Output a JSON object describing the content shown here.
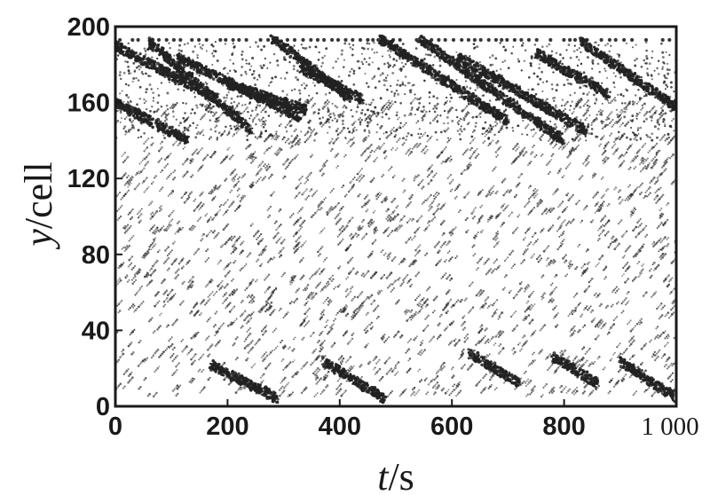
{
  "chart_data": {
    "type": "scatter",
    "title": "",
    "xlabel": {
      "var": "t",
      "unit": "/s"
    },
    "ylabel": {
      "var": "y",
      "unit": "/cell"
    },
    "xlim": [
      0,
      1000
    ],
    "ylim": [
      0,
      200
    ],
    "x_ticks": [
      {
        "value": 0,
        "label": "0"
      },
      {
        "value": 200,
        "label": "200"
      },
      {
        "value": 400,
        "label": "400"
      },
      {
        "value": 600,
        "label": "600"
      },
      {
        "value": 800,
        "label": "800"
      },
      {
        "value": 1000,
        "label": "1 000"
      }
    ],
    "y_ticks": [
      {
        "value": 0,
        "label": "0"
      },
      {
        "value": 40,
        "label": "40"
      },
      {
        "value": 80,
        "label": "80"
      },
      {
        "value": 120,
        "label": "120"
      },
      {
        "value": 160,
        "label": "160"
      },
      {
        "value": 200,
        "label": "200"
      }
    ],
    "grid": false,
    "legend": "none",
    "point_color": "#222222",
    "dense_bands": [
      {
        "t_start": 0,
        "t_end": 130,
        "y_start": 160,
        "y_end": 140
      },
      {
        "t_start": 0,
        "t_end": 180,
        "y_start": 190,
        "y_end": 162
      },
      {
        "t_start": 60,
        "t_end": 240,
        "y_start": 192,
        "y_end": 146
      },
      {
        "t_start": 110,
        "t_end": 330,
        "y_start": 184,
        "y_end": 152
      },
      {
        "t_start": 200,
        "t_end": 340,
        "y_start": 170,
        "y_end": 156
      },
      {
        "t_start": 280,
        "t_end": 420,
        "y_start": 194,
        "y_end": 162
      },
      {
        "t_start": 330,
        "t_end": 440,
        "y_start": 178,
        "y_end": 162
      },
      {
        "t_start": 470,
        "t_end": 700,
        "y_start": 194,
        "y_end": 150
      },
      {
        "t_start": 540,
        "t_end": 800,
        "y_start": 194,
        "y_end": 140
      },
      {
        "t_start": 610,
        "t_end": 840,
        "y_start": 184,
        "y_end": 145
      },
      {
        "t_start": 750,
        "t_end": 880,
        "y_start": 186,
        "y_end": 164
      },
      {
        "t_start": 830,
        "t_end": 1000,
        "y_start": 192,
        "y_end": 158
      },
      {
        "t_start": 170,
        "t_end": 290,
        "y_start": 22,
        "y_end": 4
      },
      {
        "t_start": 370,
        "t_end": 480,
        "y_start": 24,
        "y_end": 4
      },
      {
        "t_start": 630,
        "t_end": 720,
        "y_start": 28,
        "y_end": 12
      },
      {
        "t_start": 780,
        "t_end": 860,
        "y_start": 26,
        "y_end": 12
      },
      {
        "t_start": 900,
        "t_end": 1000,
        "y_start": 24,
        "y_end": 4
      }
    ],
    "sparse_region": {
      "t_range": [
        0,
        1000
      ],
      "y_range": [
        5,
        160
      ]
    },
    "top_boundary_y": 193
  }
}
